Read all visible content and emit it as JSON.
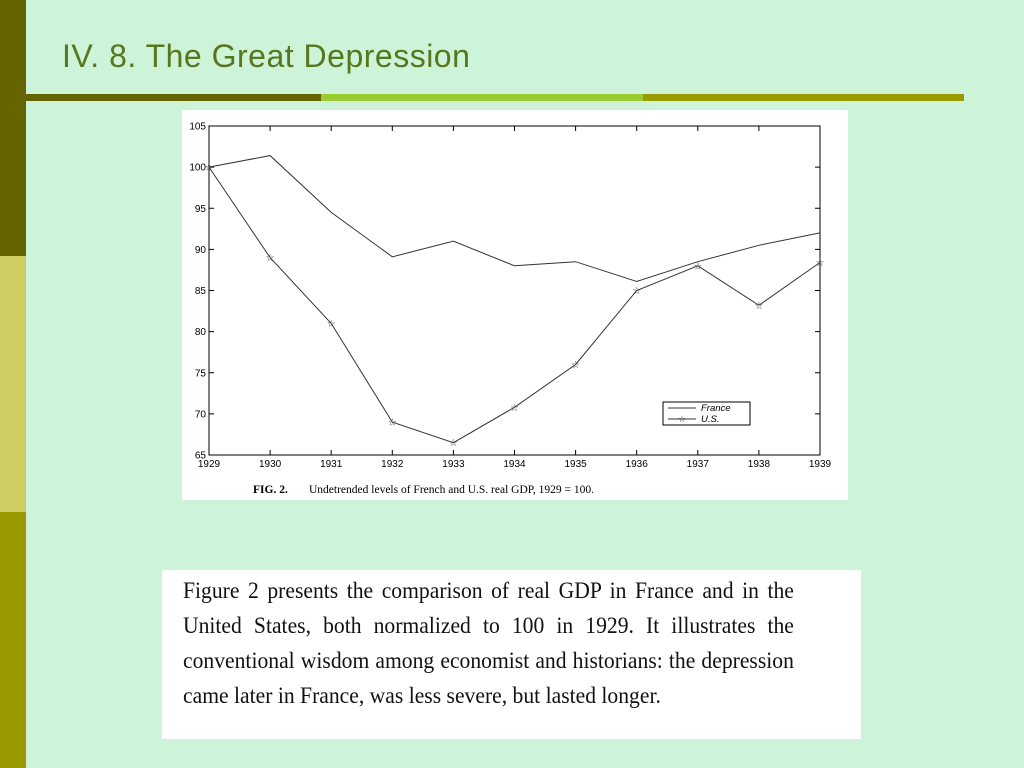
{
  "slide": {
    "title": "IV. 8. The Great Depression"
  },
  "colors": {
    "background": "#cdf3d8",
    "title": "#56771c",
    "side_dark": "#646400",
    "side_light": "#cdcd63",
    "side_olive": "#999900",
    "rule_green": "#99cc33"
  },
  "chart_data": {
    "type": "line",
    "caption_label": "FIG. 2.",
    "caption_text": "Undetrended levels of French and U.S. real GDP, 1929 = 100.",
    "x": [
      1929,
      1930,
      1931,
      1932,
      1933,
      1934,
      1935,
      1936,
      1937,
      1938,
      1939
    ],
    "xlim": [
      1929,
      1939
    ],
    "ylim": [
      65,
      105
    ],
    "yticks": [
      65,
      70,
      75,
      80,
      85,
      90,
      95,
      100,
      105
    ],
    "grid": false,
    "legend_position": "bottom-right",
    "series": [
      {
        "name": "France",
        "marker": "none",
        "values": [
          100,
          101.4,
          94.5,
          89.1,
          91,
          88,
          88.5,
          86.1,
          88.5,
          90.5,
          92
        ]
      },
      {
        "name": "U.S.",
        "marker": "star",
        "values": [
          100,
          89,
          81,
          69,
          66.5,
          70.8,
          76,
          85,
          88,
          83.2,
          88.4
        ]
      }
    ]
  },
  "body_text": {
    "paragraph": "Figure 2 presents the comparison of real GDP in France and in the United States, both normalized to 100 in 1929. It illustrates the conventional wisdom among economist and historians: the depression came later in France, was less severe, but lasted longer."
  }
}
